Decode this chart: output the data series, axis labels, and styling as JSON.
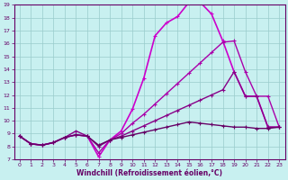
{
  "xlabel": "Windchill (Refroidissement éolien,°C)",
  "background_color": "#c8f0f0",
  "grid_color": "#99cccc",
  "x_range": [
    -0.5,
    23.5
  ],
  "y_range": [
    7,
    19
  ],
  "yticks": [
    7,
    8,
    9,
    10,
    11,
    12,
    13,
    14,
    15,
    16,
    17,
    18,
    19
  ],
  "xticks": [
    0,
    1,
    2,
    3,
    4,
    5,
    6,
    7,
    8,
    9,
    10,
    11,
    12,
    13,
    14,
    15,
    16,
    17,
    18,
    19,
    20,
    21,
    22,
    23
  ],
  "curves": [
    {
      "x": [
        0,
        1,
        2,
        3,
        4,
        5,
        6,
        7,
        8,
        9,
        10,
        11,
        12,
        13,
        14,
        15,
        16,
        17,
        18,
        19,
        20,
        21,
        22,
        23
      ],
      "y": [
        8.8,
        8.2,
        8.1,
        8.3,
        8.7,
        8.9,
        8.8,
        7.2,
        8.5,
        9.2,
        10.9,
        13.3,
        16.6,
        17.6,
        18.1,
        19.2,
        19.2,
        18.3,
        16.2,
        13.8,
        11.9,
        11.9,
        9.5,
        9.5
      ],
      "color": "#cc00cc",
      "lw": 1.2,
      "marker": true
    },
    {
      "x": [
        0,
        1,
        2,
        3,
        4,
        5,
        6,
        7,
        8,
        9,
        10,
        11,
        12,
        13,
        14,
        15,
        16,
        17,
        18,
        19,
        20,
        21,
        22,
        23
      ],
      "y": [
        8.8,
        8.2,
        8.1,
        8.3,
        8.7,
        8.9,
        8.8,
        7.5,
        8.5,
        9.0,
        9.8,
        10.5,
        11.3,
        12.1,
        12.9,
        13.7,
        14.5,
        15.3,
        16.1,
        16.2,
        13.8,
        11.9,
        11.9,
        9.5
      ],
      "color": "#aa00aa",
      "lw": 1.0,
      "marker": true
    },
    {
      "x": [
        0,
        1,
        2,
        3,
        4,
        5,
        6,
        7,
        8,
        9,
        10,
        11,
        12,
        13,
        14,
        15,
        16,
        17,
        18,
        19,
        20,
        21,
        22,
        23
      ],
      "y": [
        8.8,
        8.2,
        8.1,
        8.3,
        8.7,
        9.2,
        8.8,
        8.0,
        8.5,
        8.8,
        9.2,
        9.6,
        10.0,
        10.4,
        10.8,
        11.2,
        11.6,
        12.0,
        12.4,
        13.8,
        11.9,
        11.9,
        9.5,
        9.5
      ],
      "color": "#880088",
      "lw": 1.0,
      "marker": true
    },
    {
      "x": [
        0,
        1,
        2,
        3,
        4,
        5,
        6,
        7,
        8,
        9,
        10,
        11,
        12,
        13,
        14,
        15,
        16,
        17,
        18,
        19,
        20,
        21,
        22,
        23
      ],
      "y": [
        8.8,
        8.2,
        8.1,
        8.3,
        8.7,
        8.9,
        8.8,
        8.1,
        8.5,
        8.7,
        8.9,
        9.1,
        9.3,
        9.5,
        9.7,
        9.9,
        9.8,
        9.7,
        9.6,
        9.5,
        9.5,
        9.4,
        9.4,
        9.5
      ],
      "color": "#660066",
      "lw": 1.0,
      "marker": true
    }
  ]
}
